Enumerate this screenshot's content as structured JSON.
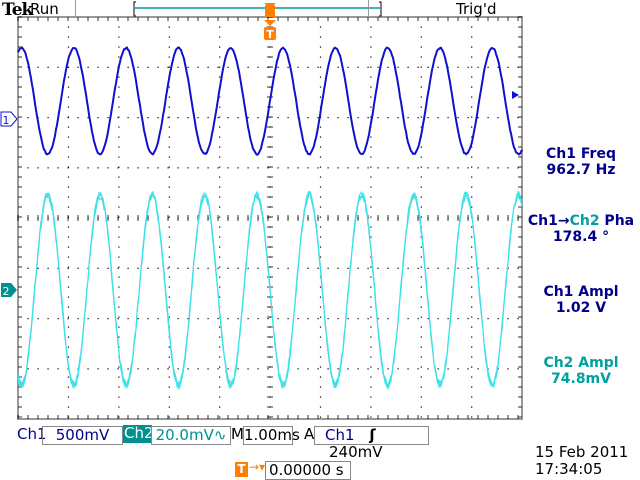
{
  "header": {
    "brand": "Tek",
    "state": "Run",
    "trigger_status": "Trig'd"
  },
  "measurements": [
    {
      "label": "Ch1 Freq",
      "value": "962.7 Hz"
    },
    {
      "label_a": "Ch1",
      "arrow": "→",
      "label_b": "Ch2",
      "label_c": " Pha",
      "value": "178.4 °"
    },
    {
      "label": "Ch1 Ampl",
      "value": "1.02 V"
    },
    {
      "label": "Ch2 Ampl",
      "value": "74.8mV"
    }
  ],
  "status_bar": {
    "ch1_label": "Ch1",
    "ch1_scale": "500mV",
    "ch2_label": "Ch2",
    "ch2_scale": "20.0mV∿",
    "time_label": "M",
    "time_scale": "1.00ms",
    "trigger_mode": "A",
    "trigger_source": "Ch1",
    "trigger_slope": "ʃ",
    "trigger_level": "240mV"
  },
  "trigger_position": {
    "label": "T",
    "value": "0.00000 s"
  },
  "datetime": {
    "date": "15 Feb  2011",
    "time": "17:34:05"
  },
  "channel_markers": {
    "ch1": "1",
    "ch2": "2"
  },
  "colors": {
    "ch1": "#1010d0",
    "ch2": "#40e0e8",
    "trigger": "#ff7f00",
    "text": "#00008b",
    "ch2_text": "#00a0a0"
  }
}
